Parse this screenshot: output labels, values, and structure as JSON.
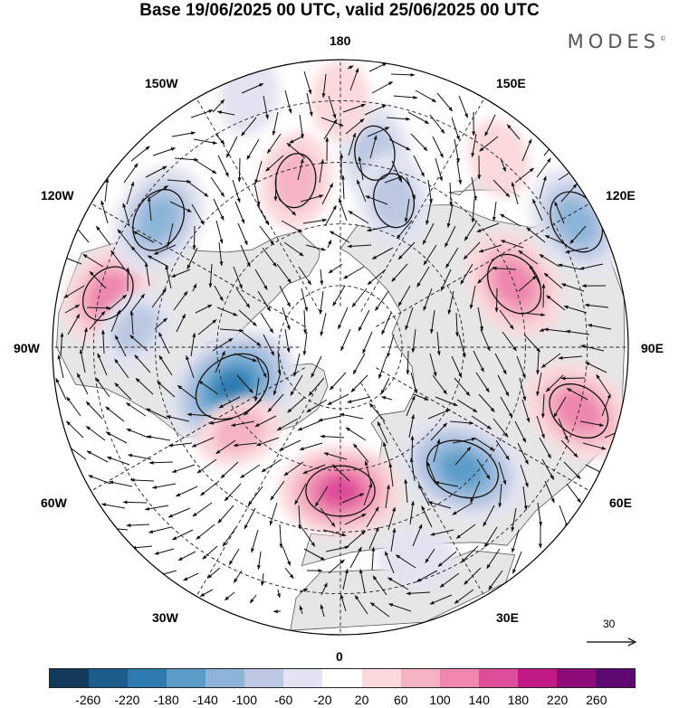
{
  "title": "Base 19/06/2025 00 UTC, valid 25/06/2025 00 UTC",
  "brand": "MODES",
  "brand_mark": "©",
  "longitude_labels": {
    "top": "180",
    "bottom": "0",
    "left": "90W",
    "right": "90E",
    "nw1": "150W",
    "nw2": "120W",
    "ne1": "150E",
    "ne2": "120E",
    "sw1": "60W",
    "sw2": "30W",
    "se1": "60E",
    "se2": "30E"
  },
  "reference_vector": {
    "label": "30",
    "icon": "arrow-right-icon"
  },
  "colorbar": {
    "ticks": [
      "-260",
      "-220",
      "-180",
      "-140",
      "-100",
      "-60",
      "-20",
      "20",
      "60",
      "100",
      "140",
      "180",
      "220",
      "260"
    ],
    "colors": [
      "#123a5c",
      "#1b5c8c",
      "#2f7ab0",
      "#5b9cc9",
      "#8db5d9",
      "#bcc8e2",
      "#e2e4f1",
      "#ffffff",
      "#fbd9dc",
      "#f5b3c3",
      "#ee86ae",
      "#de4d99",
      "#c21a85",
      "#8f0b79",
      "#5c0870"
    ]
  },
  "map_style": {
    "land_color": "#e6e6e6",
    "coast_color": "#555555",
    "grid_color": "#222222"
  },
  "anomalies": [
    {
      "sign": "neg",
      "value": -200,
      "lon": -70,
      "lat": 62
    },
    {
      "sign": "pos",
      "value": 160,
      "lon": 0,
      "lat": 55
    },
    {
      "sign": "neg",
      "value": -180,
      "lon": 45,
      "lat": 48
    },
    {
      "sign": "pos",
      "value": 140,
      "lon": 75,
      "lat": 30
    },
    {
      "sign": "pos",
      "value": 140,
      "lon": 110,
      "lat": 45
    },
    {
      "sign": "neg",
      "value": -140,
      "lon": 118,
      "lat": 25
    },
    {
      "sign": "pos",
      "value": 120,
      "lon": -103,
      "lat": 32
    },
    {
      "sign": "neg",
      "value": -140,
      "lon": -125,
      "lat": 36
    },
    {
      "sign": "pos",
      "value": 100,
      "lon": -165,
      "lat": 48
    },
    {
      "sign": "neg",
      "value": -100,
      "lon": 170,
      "lat": 42
    },
    {
      "sign": "neg",
      "value": -100,
      "lon": 160,
      "lat": 52
    },
    {
      "sign": "neg",
      "value": -60,
      "lon": -160,
      "lat": 25
    },
    {
      "sign": "pos",
      "value": 80,
      "lon": -50,
      "lat": 58
    },
    {
      "sign": "neg",
      "value": -80,
      "lon": -95,
      "lat": 40
    },
    {
      "sign": "pos",
      "value": 60,
      "lon": 140,
      "lat": 30
    },
    {
      "sign": "pos",
      "value": 60,
      "lon": 180,
      "lat": 30
    },
    {
      "sign": "neg",
      "value": -60,
      "lon": 20,
      "lat": 35
    }
  ]
}
